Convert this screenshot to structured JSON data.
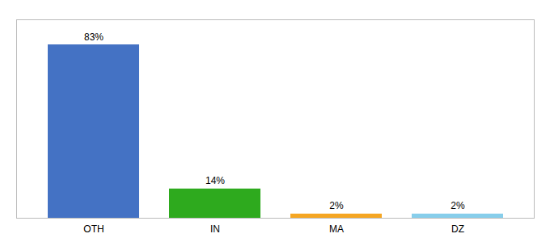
{
  "chart_data": {
    "type": "bar",
    "categories": [
      "OTH",
      "IN",
      "MA",
      "DZ"
    ],
    "values": [
      83,
      14,
      2,
      2
    ],
    "value_labels": [
      "83%",
      "14%",
      "2%",
      "2%"
    ],
    "colors": [
      "#4472C4",
      "#2EAA1E",
      "#F5A623",
      "#87CEEB"
    ],
    "ylim": [
      0,
      95
    ],
    "data_labels": true,
    "grid": false,
    "tick_labels": "x"
  }
}
